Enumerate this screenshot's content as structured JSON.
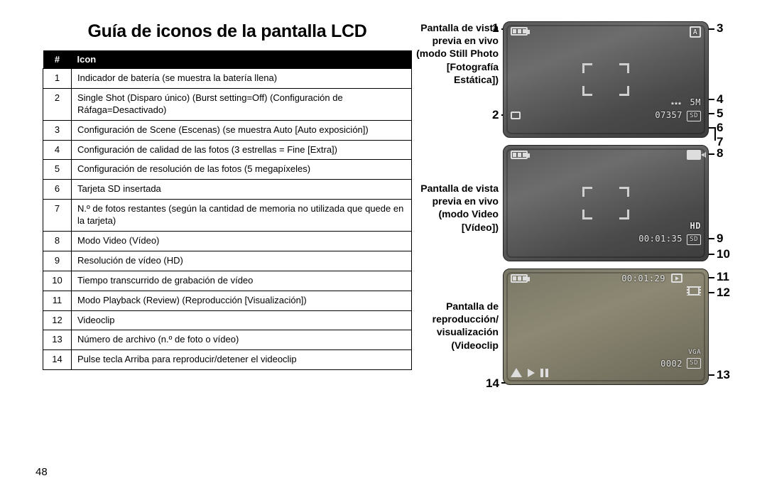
{
  "page_number": "48",
  "title": "Guía de iconos de la pantalla LCD",
  "table": {
    "header_num": "#",
    "header_icon": "Icon",
    "rows": [
      {
        "n": "1",
        "d": "Indicador de batería (se muestra la batería llena)"
      },
      {
        "n": "2",
        "d": "Single Shot (Disparo único) (Burst setting=Off) (Configuración de Ráfaga=Desactivado)"
      },
      {
        "n": "3",
        "d": "Configuración de Scene (Escenas) (se muestra Auto [Auto exposición])"
      },
      {
        "n": "4",
        "d": "Configuración de calidad de las fotos (3 estrellas = Fine [Extra])"
      },
      {
        "n": "5",
        "d": "Configuración de resolución de las fotos (5 megapíxeles)"
      },
      {
        "n": "6",
        "d": "Tarjeta SD insertada"
      },
      {
        "n": "7",
        "d": "N.º de fotos restantes (según la cantidad de memoria no utilizada que quede en la tarjeta)"
      },
      {
        "n": "8",
        "d": "Modo Video (Vídeo)"
      },
      {
        "n": "9",
        "d": "Resolución de vídeo (HD)"
      },
      {
        "n": "10",
        "d": "Tiempo transcurrido de grabación de vídeo"
      },
      {
        "n": "11",
        "d": "Modo Playback (Review)  (Reproducción [Visualización])"
      },
      {
        "n": "12",
        "d": "Videoclip"
      },
      {
        "n": "13",
        "d": "Número de archivo (n.º de foto o vídeo)"
      },
      {
        "n": "14",
        "d": "Pulse tecla Arriba para reproducir/detener el videoclip"
      }
    ]
  },
  "screens": {
    "s1": {
      "label": "Pantalla de vista previa en vivo (modo Still Photo [Fotografía Estática])"
    },
    "s2": {
      "label": "Pantalla de vista previa en vivo (modo Video [Vídeo])"
    },
    "s3": {
      "label": "Pantalla de reproducción/ visualización (Videoclip"
    }
  },
  "callouts": {
    "c1": "1",
    "c2": "2",
    "c3": "3",
    "c4": "4",
    "c5": "5",
    "c6": "6",
    "c7": "7",
    "c8": "8",
    "c9": "9",
    "c10": "10",
    "c11": "11",
    "c12": "12",
    "c13": "13",
    "c14": "14"
  },
  "overlay": {
    "five_m": "5M",
    "remaining": "07357",
    "sd": "SD",
    "hd": "HD",
    "vid_time": "00:01:35",
    "pb_time": "00:01:29",
    "file_no": "0002",
    "vga": "VGA",
    "scene_a": "A"
  },
  "colors": {
    "page_bg": "#ffffff",
    "header_bg": "#000000",
    "header_fg": "#ffffff",
    "border": "#000000",
    "lcd_grad_a": "#5a5a5a",
    "lcd_grad_b": "#3d3d3d",
    "overlay_text": "#e6e6e6"
  }
}
